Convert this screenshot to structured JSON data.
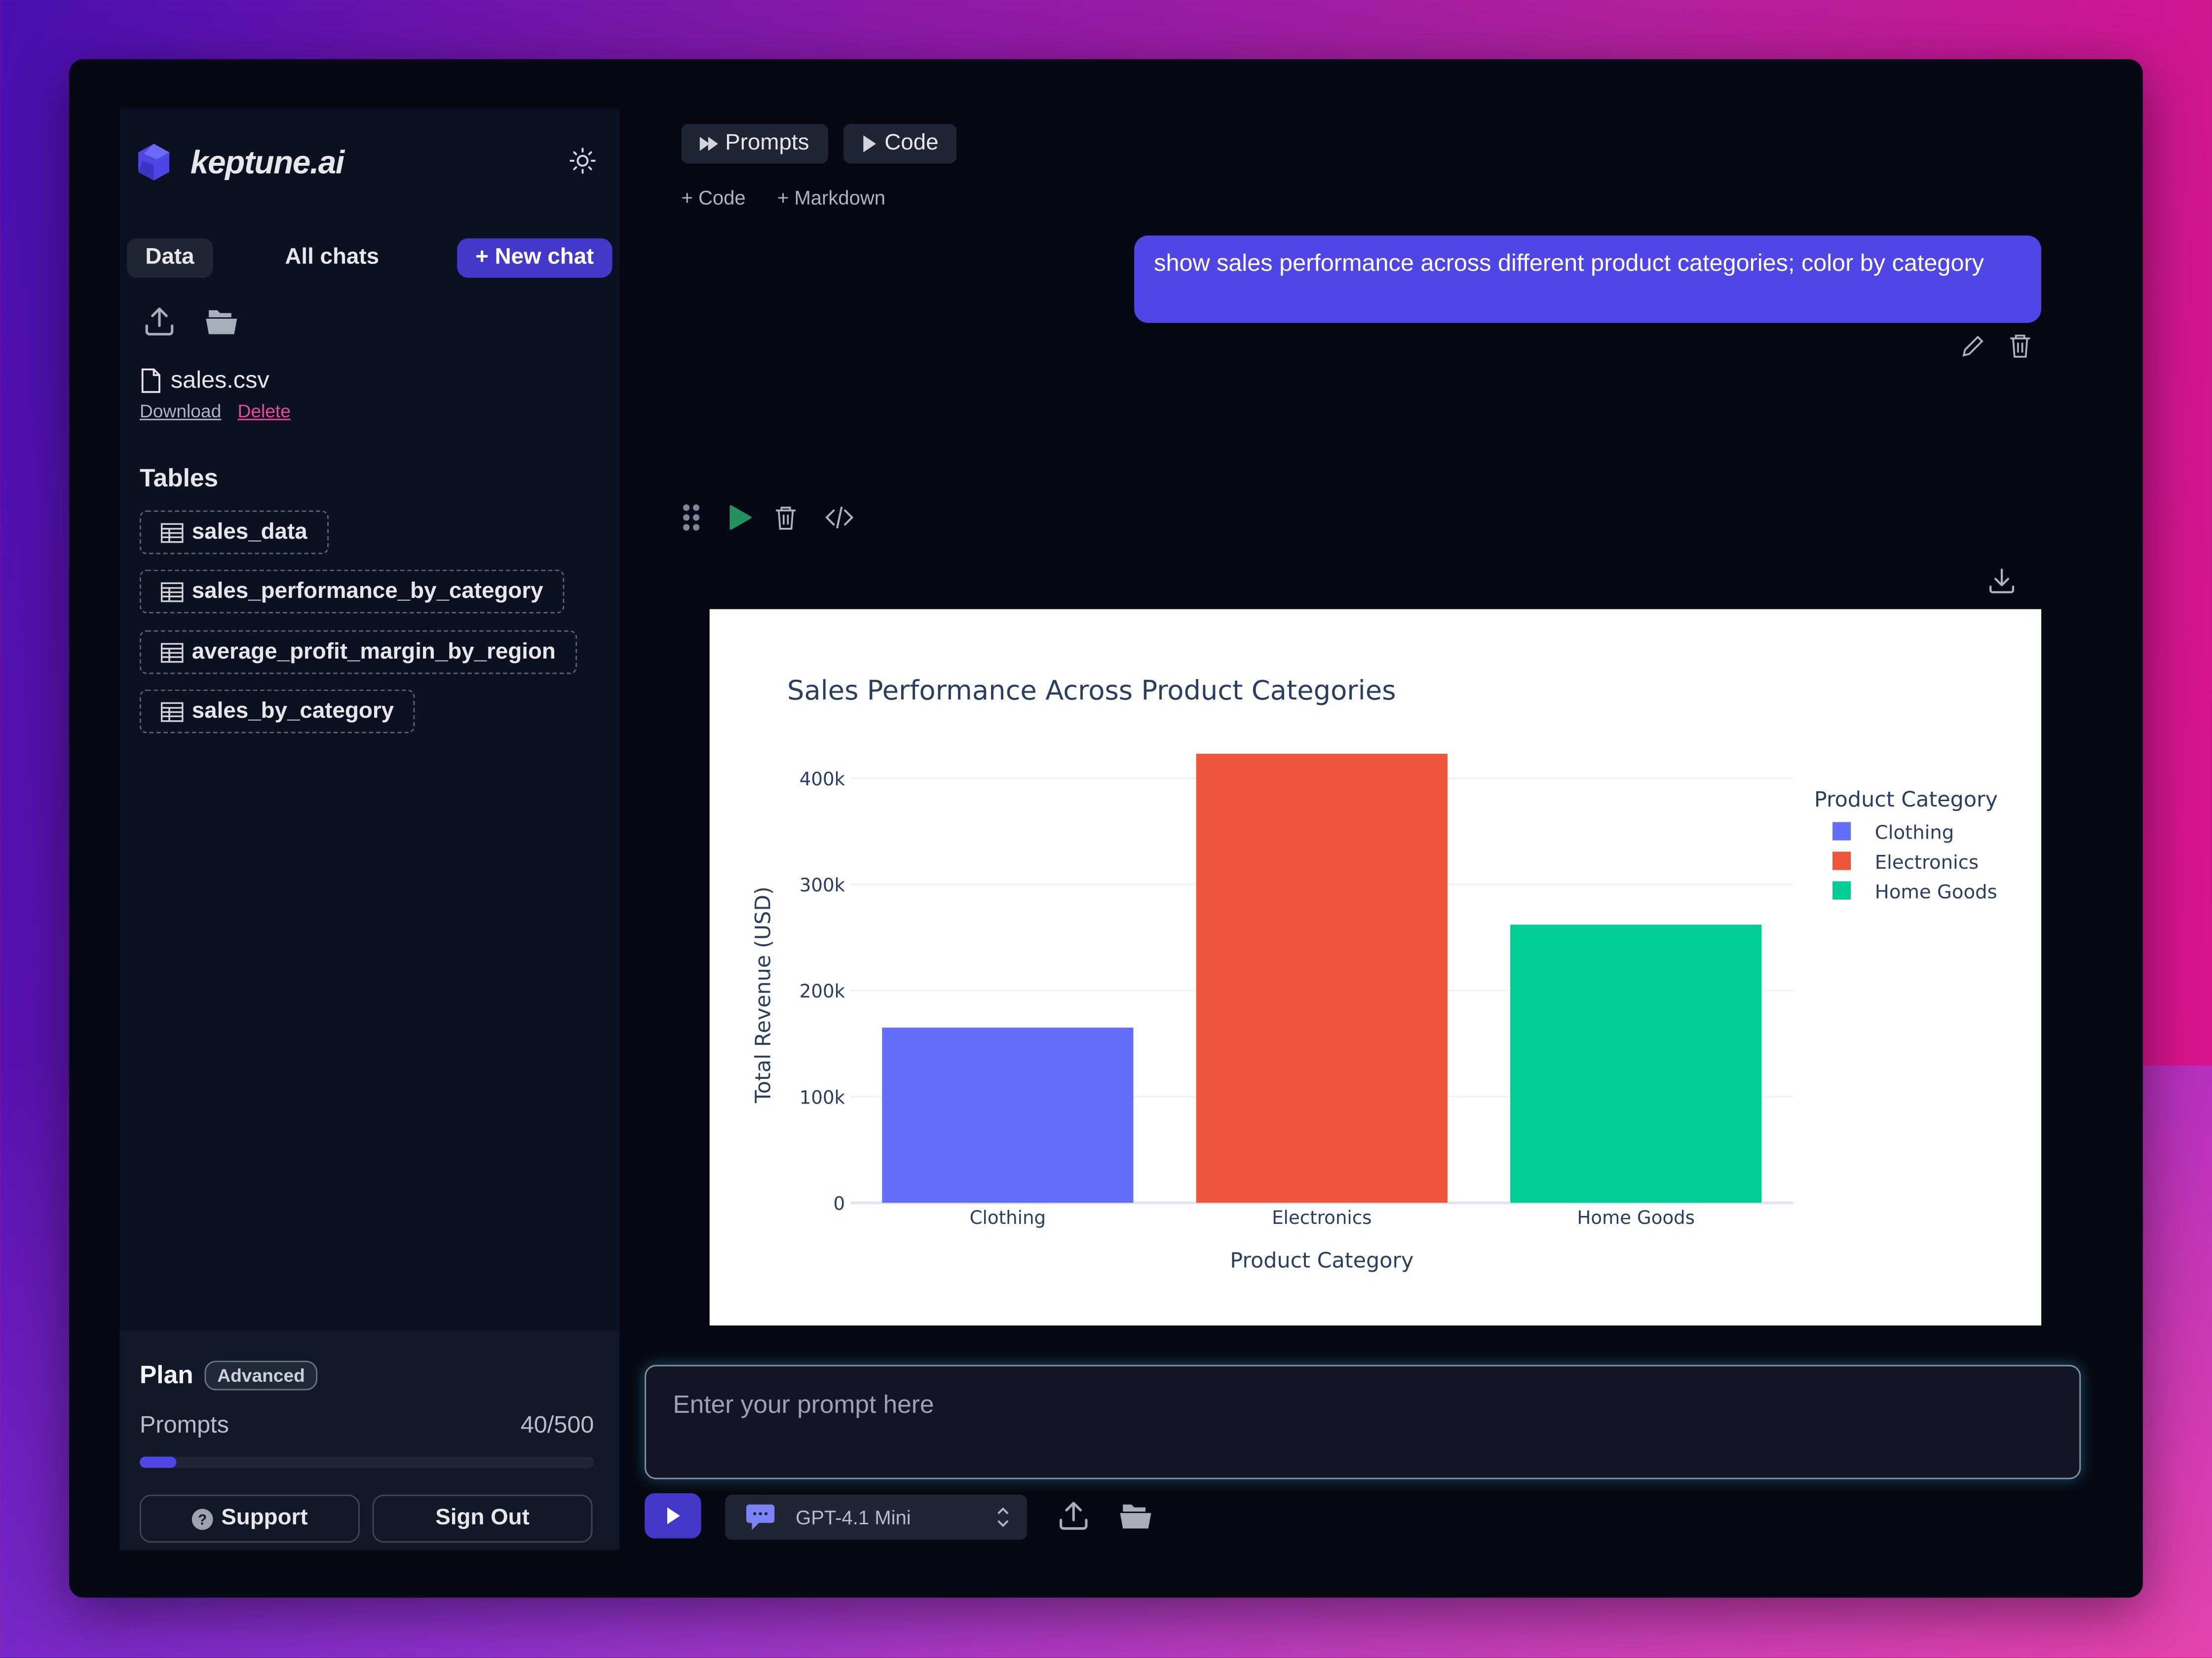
{
  "app": {
    "brand": "keptune.ai"
  },
  "sidebar": {
    "tabs": {
      "data": "Data",
      "all_chats": "All chats",
      "new_chat": "+ New chat"
    },
    "file": {
      "name": "sales.csv",
      "download": "Download",
      "delete": "Delete"
    },
    "tables_heading": "Tables",
    "tables": [
      "sales_data",
      "sales_performance_by_category",
      "average_profit_margin_by_region",
      "sales_by_category"
    ],
    "plan": {
      "title": "Plan",
      "badge": "Advanced",
      "usage_label": "Prompts",
      "usage_value": "40/500",
      "usage_percent": 8,
      "support": "Support",
      "sign_out": "Sign Out"
    }
  },
  "main": {
    "toolbar": {
      "prompts": "Prompts",
      "code": "Code",
      "add_code": "+ Code",
      "add_markdown": "+ Markdown"
    },
    "user_message": "show sales performance across different product categories; color by category"
  },
  "composer": {
    "placeholder": "Enter your prompt here",
    "model": "GPT-4.1 Mini"
  },
  "colors": {
    "accent": "#4f46e5",
    "run": "#22935f",
    "delete_link": "#ec4899"
  },
  "chart_data": {
    "type": "bar",
    "title": "Sales Performance Across Product Categories",
    "xlabel": "Product Category",
    "ylabel": "Total Revenue (USD)",
    "categories": [
      "Clothing",
      "Electronics",
      "Home Goods"
    ],
    "values": [
      165000,
      423000,
      262000
    ],
    "colors": [
      "#636efa",
      "#ef553b",
      "#00cc96"
    ],
    "yticks": [
      "0",
      "100k",
      "200k",
      "300k",
      "400k"
    ],
    "ylim": [
      0,
      445000
    ],
    "grid": true,
    "legend": {
      "title": "Product Category",
      "position": "right",
      "entries": [
        "Clothing",
        "Electronics",
        "Home Goods"
      ]
    }
  }
}
